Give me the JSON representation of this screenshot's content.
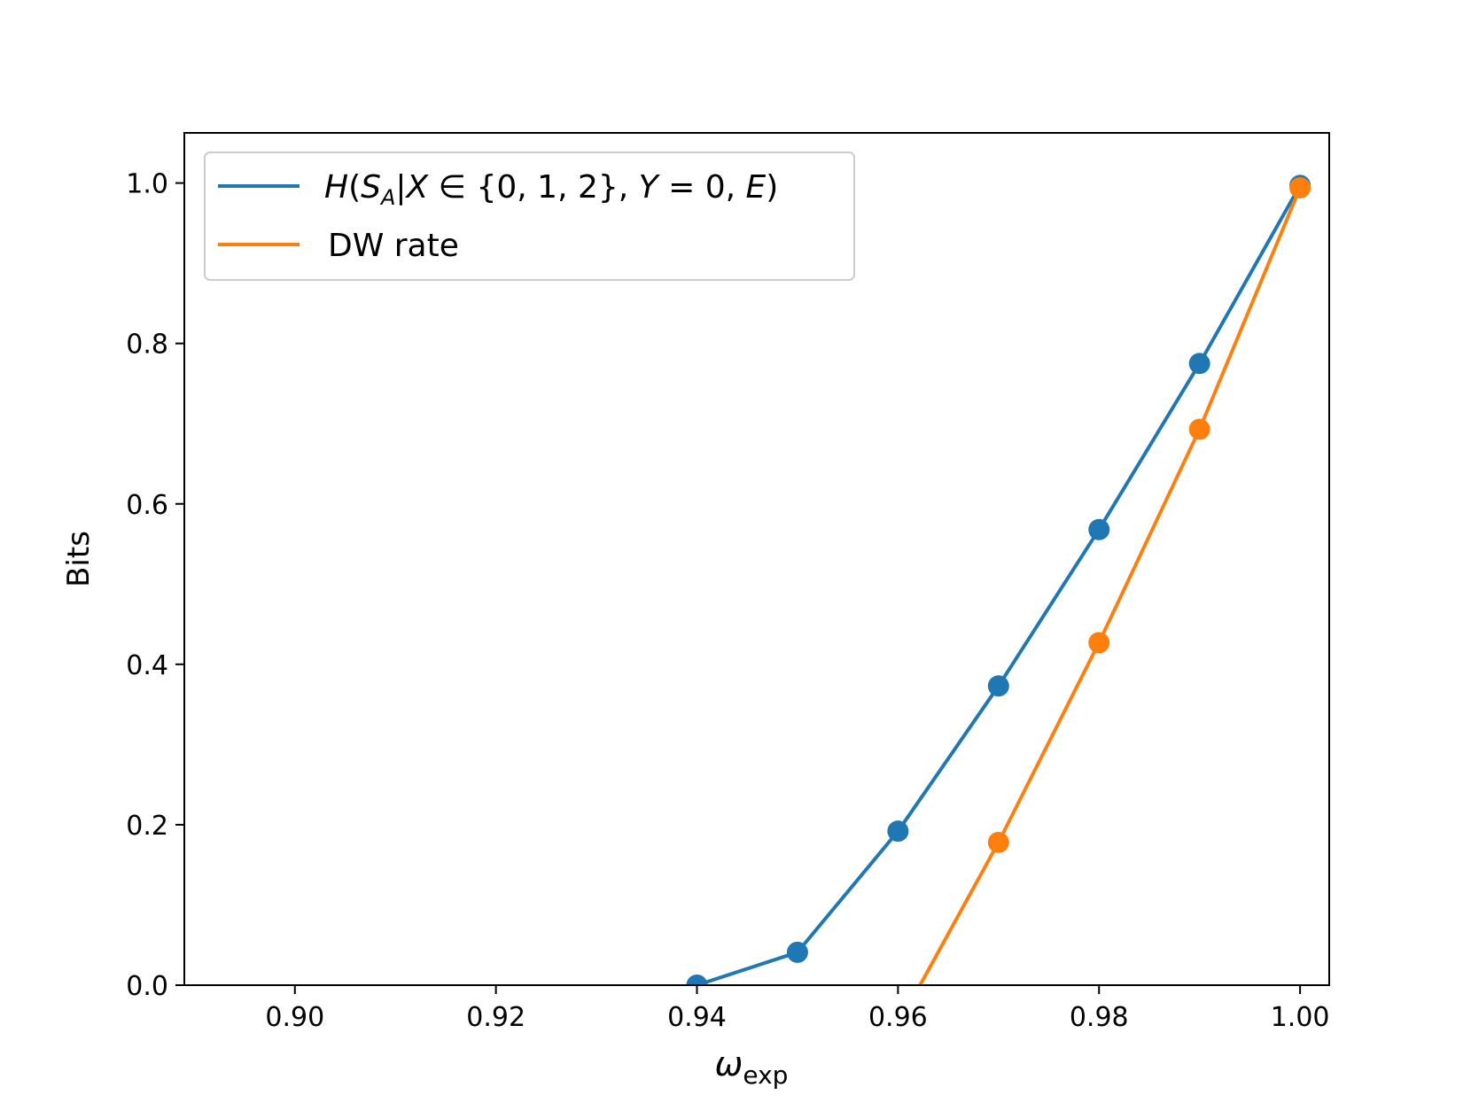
{
  "chart_data": {
    "type": "line",
    "title": "",
    "xlabel": {
      "main": "ω",
      "sub": "exp"
    },
    "ylabel": "Bits",
    "xlim": [
      0.889,
      1.0029
    ],
    "ylim": [
      0.0,
      1.0625
    ],
    "x_ticks": [
      {
        "value": 0.9,
        "label": "0.90"
      },
      {
        "value": 0.92,
        "label": "0.92"
      },
      {
        "value": 0.94,
        "label": "0.94"
      },
      {
        "value": 0.96,
        "label": "0.96"
      },
      {
        "value": 0.98,
        "label": "0.98"
      },
      {
        "value": 1.0,
        "label": "1.00"
      }
    ],
    "y_ticks": [
      {
        "value": 0.0,
        "label": "0.0"
      },
      {
        "value": 0.2,
        "label": "0.2"
      },
      {
        "value": 0.4,
        "label": "0.4"
      },
      {
        "value": 0.6,
        "label": "0.6"
      },
      {
        "value": 0.8,
        "label": "0.8"
      },
      {
        "value": 1.0,
        "label": "1.0"
      }
    ],
    "grid": false,
    "legend_placement": "top-left",
    "series": [
      {
        "name": "H(S_A|X ∈ {0,1,2}, Y = 0, E)",
        "legend_parts": {
          "H": "H",
          "open": "(",
          "S": "S",
          "A": "A",
          "rest1": "|",
          "X": "X",
          "rest2": " ∈ {0, 1, 2}, ",
          "Y": "Y",
          "rest3": " = 0, ",
          "E": "E",
          "close": ")"
        },
        "color": "#1f77b4",
        "line_x": [
          0.94,
          0.95,
          0.96,
          0.97,
          0.98,
          0.99,
          1.0
        ],
        "line_y": [
          0.0,
          0.041,
          0.192,
          0.373,
          0.568,
          0.775,
          0.997
        ],
        "points_x": [
          0.94,
          0.95,
          0.96,
          0.97,
          0.98,
          0.99,
          1.0
        ],
        "points_y": [
          0.0,
          0.041,
          0.192,
          0.373,
          0.568,
          0.775,
          0.997
        ]
      },
      {
        "name": "DW rate",
        "color": "#ff7f0e",
        "line_x": [
          0.9622,
          0.97,
          0.98,
          0.99,
          1.0
        ],
        "line_y": [
          0.0,
          0.178,
          0.427,
          0.693,
          0.994
        ],
        "points_x": [
          0.97,
          0.98,
          0.99,
          1.0
        ],
        "points_y": [
          0.178,
          0.427,
          0.693,
          0.994
        ]
      }
    ]
  }
}
